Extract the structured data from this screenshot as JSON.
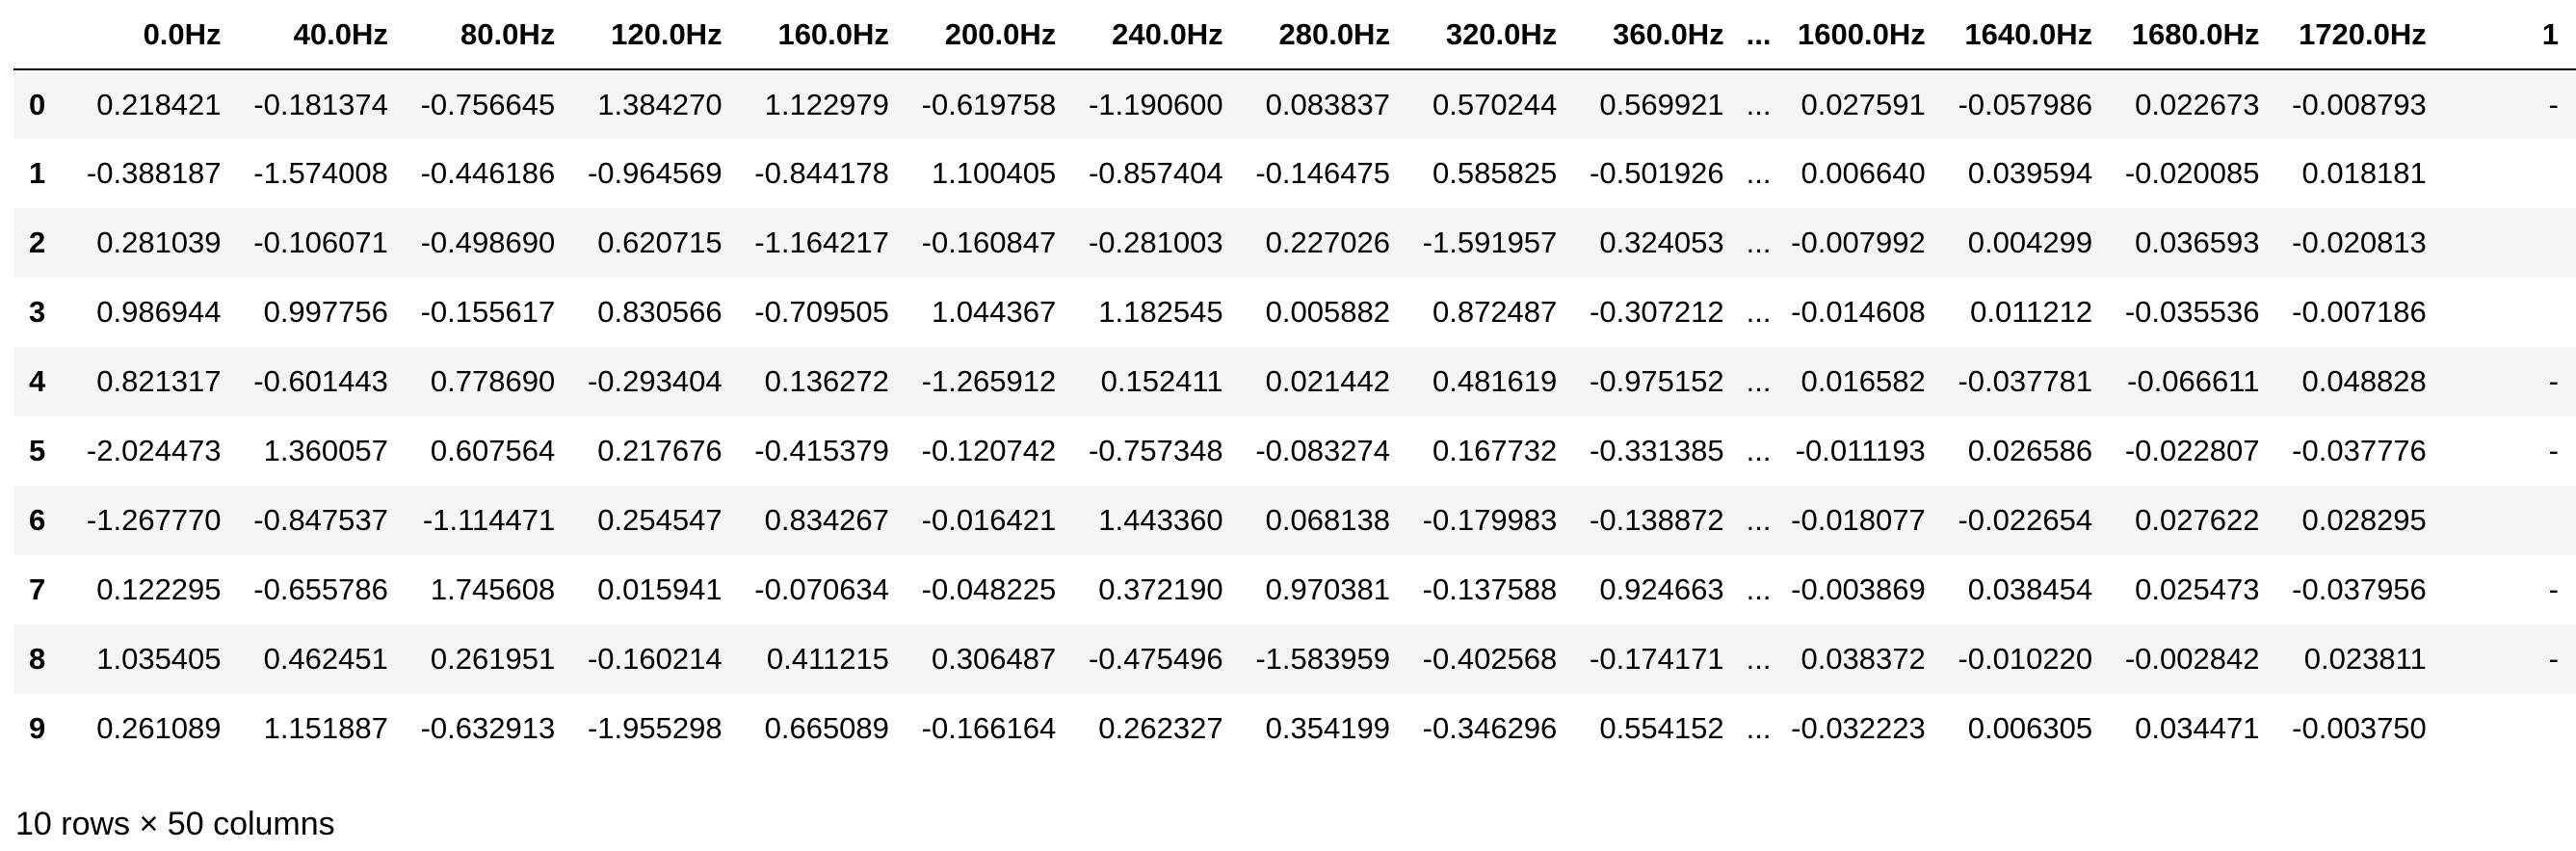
{
  "table": {
    "index_header": "",
    "columns_left": [
      "0.0Hz",
      "40.0Hz",
      "80.0Hz",
      "120.0Hz",
      "160.0Hz",
      "200.0Hz",
      "240.0Hz",
      "280.0Hz",
      "320.0Hz",
      "360.0Hz"
    ],
    "ellipsis": "...",
    "columns_right": [
      "1600.0Hz",
      "1640.0Hz",
      "1680.0Hz",
      "1720.0Hz"
    ],
    "truncated_column": "1",
    "rows": [
      {
        "index": "0",
        "left": [
          "0.218421",
          "-0.181374",
          "-0.756645",
          "1.384270",
          "1.122979",
          "-0.619758",
          "-1.190600",
          "0.083837",
          "0.570244",
          "0.569921"
        ],
        "right": [
          "0.027591",
          "-0.057986",
          "0.022673",
          "-0.008793"
        ],
        "trunc": "-"
      },
      {
        "index": "1",
        "left": [
          "-0.388187",
          "-1.574008",
          "-0.446186",
          "-0.964569",
          "-0.844178",
          "1.100405",
          "-0.857404",
          "-0.146475",
          "0.585825",
          "-0.501926"
        ],
        "right": [
          "0.006640",
          "0.039594",
          "-0.020085",
          "0.018181"
        ],
        "trunc": ""
      },
      {
        "index": "2",
        "left": [
          "0.281039",
          "-0.106071",
          "-0.498690",
          "0.620715",
          "-1.164217",
          "-0.160847",
          "-0.281003",
          "0.227026",
          "-1.591957",
          "0.324053"
        ],
        "right": [
          "-0.007992",
          "0.004299",
          "0.036593",
          "-0.020813"
        ],
        "trunc": ""
      },
      {
        "index": "3",
        "left": [
          "0.986944",
          "0.997756",
          "-0.155617",
          "0.830566",
          "-0.709505",
          "1.044367",
          "1.182545",
          "0.005882",
          "0.872487",
          "-0.307212"
        ],
        "right": [
          "-0.014608",
          "0.011212",
          "-0.035536",
          "-0.007186"
        ],
        "trunc": ""
      },
      {
        "index": "4",
        "left": [
          "0.821317",
          "-0.601443",
          "0.778690",
          "-0.293404",
          "0.136272",
          "-1.265912",
          "0.152411",
          "0.021442",
          "0.481619",
          "-0.975152"
        ],
        "right": [
          "0.016582",
          "-0.037781",
          "-0.066611",
          "0.048828"
        ],
        "trunc": "-"
      },
      {
        "index": "5",
        "left": [
          "-2.024473",
          "1.360057",
          "0.607564",
          "0.217676",
          "-0.415379",
          "-0.120742",
          "-0.757348",
          "-0.083274",
          "0.167732",
          "-0.331385"
        ],
        "right": [
          "-0.011193",
          "0.026586",
          "-0.022807",
          "-0.037776"
        ],
        "trunc": "-"
      },
      {
        "index": "6",
        "left": [
          "-1.267770",
          "-0.847537",
          "-1.114471",
          "0.254547",
          "0.834267",
          "-0.016421",
          "1.443360",
          "0.068138",
          "-0.179983",
          "-0.138872"
        ],
        "right": [
          "-0.018077",
          "-0.022654",
          "0.027622",
          "0.028295"
        ],
        "trunc": ""
      },
      {
        "index": "7",
        "left": [
          "0.122295",
          "-0.655786",
          "1.745608",
          "0.015941",
          "-0.070634",
          "-0.048225",
          "0.372190",
          "0.970381",
          "-0.137588",
          "0.924663"
        ],
        "right": [
          "-0.003869",
          "0.038454",
          "0.025473",
          "-0.037956"
        ],
        "trunc": "-"
      },
      {
        "index": "8",
        "left": [
          "1.035405",
          "0.462451",
          "0.261951",
          "-0.160214",
          "0.411215",
          "0.306487",
          "-0.475496",
          "-1.583959",
          "-0.402568",
          "-0.174171"
        ],
        "right": [
          "0.038372",
          "-0.010220",
          "-0.002842",
          "0.023811"
        ],
        "trunc": "-"
      },
      {
        "index": "9",
        "left": [
          "0.261089",
          "1.151887",
          "-0.632913",
          "-1.955298",
          "0.665089",
          "-0.166164",
          "0.262327",
          "0.354199",
          "-0.346296",
          "0.554152"
        ],
        "right": [
          "-0.032223",
          "0.006305",
          "0.034471",
          "-0.003750"
        ],
        "trunc": ""
      }
    ]
  },
  "caption": "10 rows × 50 columns",
  "colors": {
    "row_stripe": "#f5f5f5",
    "header_rule": "#000000",
    "text": "#000000",
    "background": "#ffffff"
  }
}
